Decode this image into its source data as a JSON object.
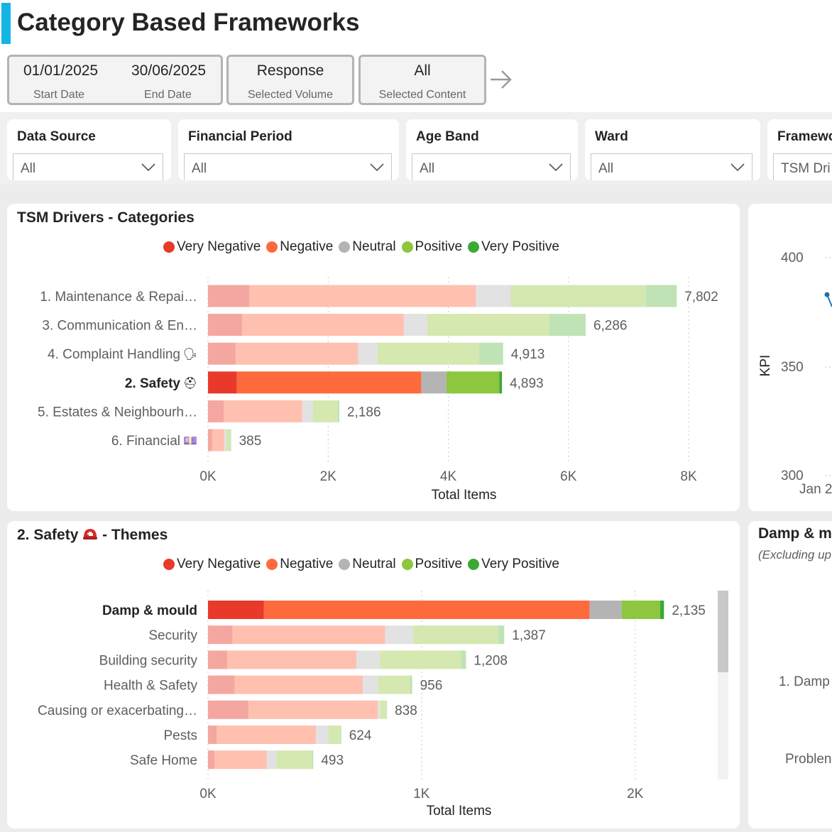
{
  "header": {
    "title": "Category Based Frameworks",
    "cards": [
      {
        "value1": "01/01/2025",
        "label1": "Start Date",
        "value2": "30/06/2025",
        "label2": "End Date"
      },
      {
        "value": "Response",
        "label": "Selected Volume"
      },
      {
        "value": "All",
        "label": "Selected Content"
      }
    ],
    "next_icon": "arrow-right-icon"
  },
  "slicers": [
    {
      "title": "Data Source",
      "value": "All"
    },
    {
      "title": "Financial Period",
      "value": "All"
    },
    {
      "title": "Age Band",
      "value": "All"
    },
    {
      "title": "Ward",
      "value": "All"
    },
    {
      "title": "Framewo",
      "value": "TSM Dri"
    }
  ],
  "legend": [
    {
      "label": "Very Negative",
      "color": "#e8392a"
    },
    {
      "label": "Negative",
      "color": "#ff6a3d"
    },
    {
      "label": "Neutral",
      "color": "#b4b4b4"
    },
    {
      "label": "Positive",
      "color": "#8dc63f"
    },
    {
      "label": "Very Positive",
      "color": "#3aaa35"
    }
  ],
  "faded_colors": [
    "#f4a7a0",
    "#ffc0b0",
    "#e2e2e2",
    "#d4e8b0",
    "#bfe3b5"
  ],
  "categories_panel": {
    "title": "TSM Drivers - Categories"
  },
  "themes_panel": {
    "title_before": "2. Safety",
    "title_after": "- Themes"
  },
  "kpi_panel": {
    "y_label": "KPI",
    "ticks": [
      "400",
      "350",
      "300"
    ],
    "x_label": "Jan 2"
  },
  "right_panel": {
    "title": "Damp & m",
    "subtitle": "(Excluding up",
    "items": [
      "1. Damp",
      "Problen"
    ]
  },
  "chart_data": [
    {
      "type": "bar",
      "orientation": "horizontal",
      "stacked": true,
      "title": "TSM Drivers - Categories",
      "xlabel": "Total Items",
      "xlim": [
        0,
        8000
      ],
      "xticks": [
        {
          "v": 0,
          "label": "0K"
        },
        {
          "v": 2000,
          "label": "2K"
        },
        {
          "v": 4000,
          "label": "4K"
        },
        {
          "v": 6000,
          "label": "6K"
        },
        {
          "v": 8000,
          "label": "8K"
        }
      ],
      "series_names": [
        "Very Negative",
        "Negative",
        "Neutral",
        "Positive",
        "Very Positive"
      ],
      "highlighted": "2. Safety",
      "rows": [
        {
          "label": "1. Maintenance & Repai…",
          "icon": "",
          "segments": [
            690,
            3770,
            580,
            2250,
            512
          ],
          "total_label": "7,802"
        },
        {
          "label": "3. Communication & En…",
          "icon": "",
          "segments": [
            570,
            2690,
            390,
            2030,
            606
          ],
          "total_label": "6,286"
        },
        {
          "label": "4. Complaint Handling",
          "icon": "🗣",
          "segments": [
            460,
            2040,
            320,
            1690,
            403
          ],
          "total_label": "4,913"
        },
        {
          "label": "2. Safety",
          "icon": "⛑",
          "segments": [
            480,
            3070,
            420,
            880,
            43
          ],
          "total_label": "4,893"
        },
        {
          "label": "5. Estates & Neighbourh…",
          "icon": "",
          "segments": [
            260,
            1310,
            170,
            420,
            26
          ],
          "total_label": "2,186"
        },
        {
          "label": "6. Financial",
          "icon": "💷",
          "segments": [
            70,
            200,
            30,
            70,
            15
          ],
          "total_label": "385"
        }
      ]
    },
    {
      "type": "bar",
      "orientation": "horizontal",
      "stacked": true,
      "title": "2. Safety - Themes",
      "xlabel": "Total Items",
      "xlim": [
        0,
        2350
      ],
      "xticks": [
        {
          "v": 0,
          "label": "0K"
        },
        {
          "v": 1000,
          "label": "1K"
        },
        {
          "v": 2000,
          "label": "2K"
        }
      ],
      "series_names": [
        "Very Negative",
        "Negative",
        "Neutral",
        "Positive",
        "Very Positive"
      ],
      "highlighted": "Damp & mould",
      "rows": [
        {
          "label": "Damp & mould",
          "icon": "",
          "segments": [
            262,
            1525,
            150,
            180,
            18
          ],
          "total_label": "2,135"
        },
        {
          "label": "Security",
          "icon": "",
          "segments": [
            115,
            715,
            130,
            400,
            27
          ],
          "total_label": "1,387"
        },
        {
          "label": "Building security",
          "icon": "",
          "segments": [
            90,
            605,
            110,
            380,
            23
          ],
          "total_label": "1,208"
        },
        {
          "label": "Health & Safety",
          "icon": "",
          "segments": [
            125,
            600,
            70,
            150,
            11
          ],
          "total_label": "956"
        },
        {
          "label": "Causing or exacerbating…",
          "icon": "",
          "segments": [
            190,
            605,
            10,
            30,
            3
          ],
          "total_label": "838"
        },
        {
          "label": "Pests",
          "icon": "",
          "segments": [
            40,
            465,
            60,
            55,
            4
          ],
          "total_label": "624"
        },
        {
          "label": "Safe Home",
          "icon": "",
          "segments": [
            30,
            245,
            45,
            165,
            8
          ],
          "total_label": "493"
        }
      ]
    }
  ]
}
